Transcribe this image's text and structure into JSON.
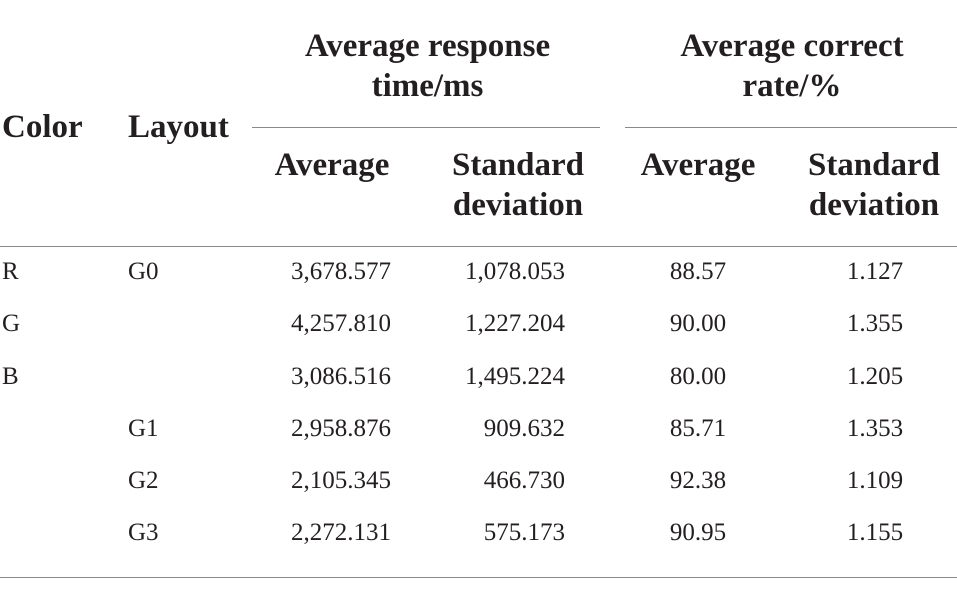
{
  "headers": {
    "color": "Color",
    "layout": "Layout",
    "response_group_line1": "Average response",
    "response_group_line2": "time/ms",
    "correct_group_line1": "Average correct",
    "correct_group_line2": "rate/%",
    "average_1": "Average",
    "std_1_line1": "Standard",
    "std_1_line2": "deviation",
    "average_2": "Average",
    "std_2_line1": "Standard",
    "std_2_line2": "deviation"
  },
  "rows": [
    {
      "color": "R",
      "layout": "G0",
      "rt_avg": "3,678.577",
      "rt_sd": "1,078.053",
      "cr_avg": "88.57",
      "cr_sd": "1.127"
    },
    {
      "color": "G",
      "layout": "",
      "rt_avg": "4,257.810",
      "rt_sd": "1,227.204",
      "cr_avg": "90.00",
      "cr_sd": "1.355"
    },
    {
      "color": "B",
      "layout": "",
      "rt_avg": "3,086.516",
      "rt_sd": "1,495.224",
      "cr_avg": "80.00",
      "cr_sd": "1.205"
    },
    {
      "color": "",
      "layout": "G1",
      "rt_avg": "2,958.876",
      "rt_sd": "909.632",
      "cr_avg": "85.71",
      "cr_sd": "1.353"
    },
    {
      "color": "",
      "layout": "G2",
      "rt_avg": "2,105.345",
      "rt_sd": "466.730",
      "cr_avg": "92.38",
      "cr_sd": "1.109"
    },
    {
      "color": "",
      "layout": "G3",
      "rt_avg": "2,272.131",
      "rt_sd": "575.173",
      "cr_avg": "90.95",
      "cr_sd": "1.155"
    }
  ]
}
